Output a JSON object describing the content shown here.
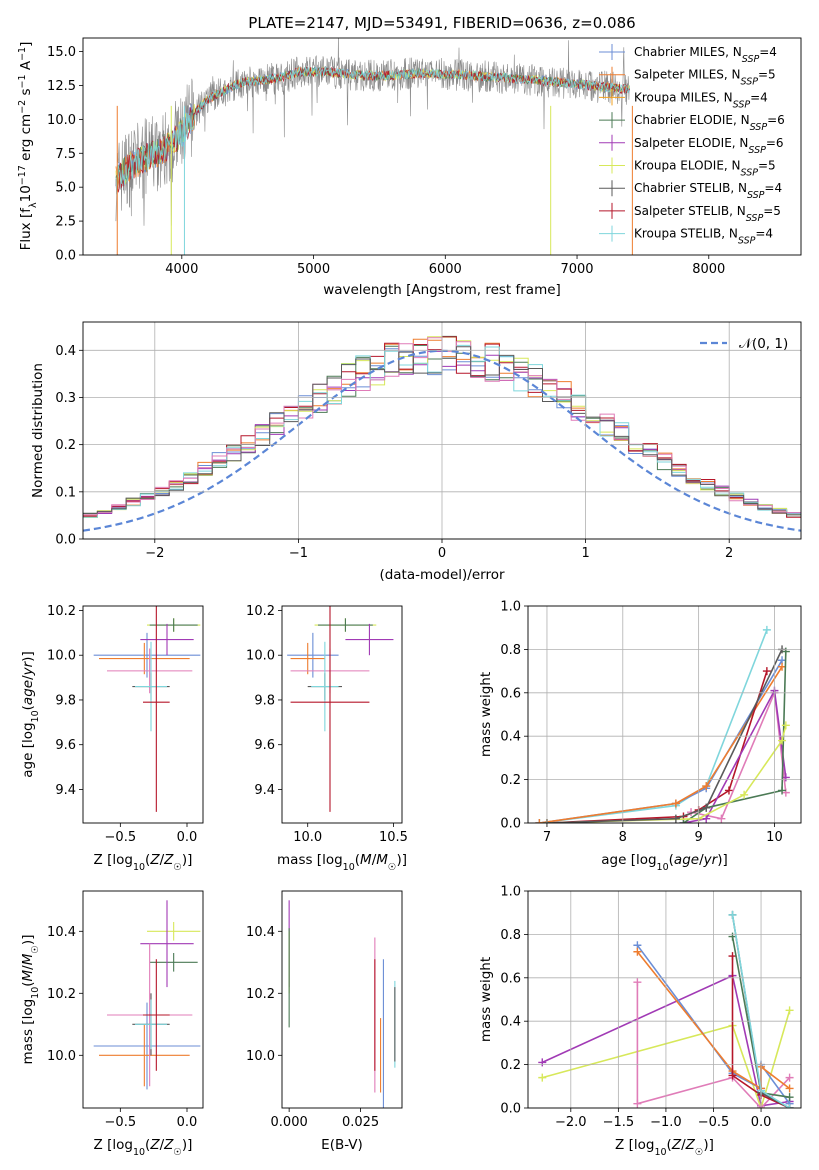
{
  "title": "PLATE=2147, MJD=53491, FIBERID=0636, z=0.086",
  "colors": {
    "chabrier_miles": "#6b8ed6",
    "salpeter_miles": "#ee7d2f",
    "kroupa_miles": "#f0a020",
    "chabrier_elodie": "#4b7a55",
    "salpeter_elodie": "#a13ab5",
    "kroupa_elodie": "#d7e85a",
    "chabrier_stelib": "#5a5a5a",
    "salpeter_stelib": "#b5162a",
    "kroupa_stelib": "#7fd6dc",
    "pink": "#e07cb8",
    "observed": "#8a8a8a",
    "normal": "#5b86d6"
  },
  "chart_data": [
    {
      "id": "spectrum",
      "type": "line",
      "title": "PLATE=2147, MJD=53491, FIBERID=0636, z=0.086",
      "xlabel": "wavelength [Angstrom, rest frame]",
      "ylabel": "Flux [f_λ10^-17 erg cm^-2 s^-1 A^-1]",
      "xlim": [
        3250,
        8700
      ],
      "ylim": [
        0,
        16
      ],
      "xticks": [
        "4000",
        "5000",
        "6000",
        "7000",
        "8000"
      ],
      "xtick_values": [
        4000,
        5000,
        6000,
        7000,
        8000
      ],
      "yticks": [
        "0.0",
        "2.5",
        "5.0",
        "7.5",
        "10.0",
        "12.5",
        "15.0"
      ],
      "ytick_values": [
        0,
        2.5,
        5,
        7.5,
        10,
        12.5,
        15
      ],
      "continuum": {
        "x": [
          3500,
          3600,
          3700,
          3800,
          3900,
          4000,
          4100,
          4200,
          4300,
          4400,
          4500,
          4700,
          4900,
          5100,
          5300,
          5500,
          5800,
          6100,
          6400,
          6700,
          7000,
          7200,
          7400
        ],
        "y": [
          5.5,
          6.5,
          7.0,
          7.5,
          8.0,
          9.0,
          10.5,
          11.5,
          12.0,
          12.5,
          12.8,
          13.0,
          13.5,
          13.5,
          13.3,
          13.2,
          13.4,
          13.3,
          13.1,
          12.9,
          12.6,
          12.4,
          12.2
        ]
      },
      "legend": [
        "Chabrier MILES, N_SSP=4",
        "Salpeter MILES, N_SSP=5",
        "Kroupa MILES, N_SSP=4",
        "Chabrier ELODIE, N_SSP=6",
        "Salpeter ELODIE, N_SSP=6",
        "Kroupa ELODIE, N_SSP=5",
        "Chabrier STELIB, N_SSP=4",
        "Salpeter STELIB, N_SSP=5",
        "Kroupa STELIB, N_SSP=4"
      ],
      "legend_placement": "upper right"
    },
    {
      "id": "residuals",
      "type": "histogram",
      "xlabel": "(data-model)/error",
      "ylabel": "Normed distribution",
      "xlim": [
        -2.5,
        2.5
      ],
      "ylim": [
        0,
        0.46
      ],
      "xticks": [
        "−2",
        "−1",
        "0",
        "1",
        "2"
      ],
      "xtick_values": [
        -2,
        -1,
        0,
        1,
        2
      ],
      "yticks": [
        "0.0",
        "0.1",
        "0.2",
        "0.3",
        "0.4"
      ],
      "ytick_values": [
        0,
        0.1,
        0.2,
        0.3,
        0.4
      ],
      "grid": true,
      "legend": [
        "𝒩(0, 1)"
      ],
      "legend_placement": "upper right"
    },
    {
      "id": "age_vs_Z",
      "type": "errorbar",
      "xlabel": "Z [log10(Z/Z☉)]",
      "ylabel": "age [log10(age/yr)]",
      "xlim": [
        -0.78,
        0.12
      ],
      "ylim": [
        9.25,
        10.22
      ],
      "xticks": [
        "−0.5",
        "0.0"
      ],
      "xtick_values": [
        -0.5,
        0.0
      ],
      "yticks": [
        "9.4",
        "9.6",
        "9.8",
        "10.0",
        "10.2"
      ],
      "ytick_values": [
        9.4,
        9.6,
        9.8,
        10.0,
        10.2
      ],
      "points": [
        {
          "c": "chabrier_miles",
          "x": -0.3,
          "y": 10.0,
          "xerr": 0.4,
          "yerr": 0.1
        },
        {
          "c": "salpeter_miles",
          "x": -0.32,
          "y": 9.985,
          "xerr": 0.34,
          "yerr": 0.07
        },
        {
          "c": "kroupa_elodie",
          "x": -0.1,
          "y": 10.135,
          "xerr": 0.2,
          "yerr": 0.03
        },
        {
          "c": "chabrier_elodie",
          "x": -0.1,
          "y": 10.135,
          "xerr": 0.18,
          "yerr": 0.03
        },
        {
          "c": "salpeter_elodie",
          "x": -0.15,
          "y": 10.07,
          "xerr": 0.2,
          "yerr": 0.07
        },
        {
          "c": "pink",
          "x": -0.28,
          "y": 9.93,
          "xerr": 0.32,
          "yerr": 0.1
        },
        {
          "c": "chabrier_stelib",
          "x": -0.27,
          "y": 9.86,
          "xerr": 0.14,
          "yerr": 0.06
        },
        {
          "c": "kroupa_stelib",
          "x": -0.27,
          "y": 9.86,
          "xerr": 0.12,
          "yerr": 0.2
        },
        {
          "c": "salpeter_stelib",
          "x": -0.23,
          "y": 9.79,
          "xerr": 0.1,
          "yerr": 0.49
        }
      ]
    },
    {
      "id": "age_vs_mass",
      "type": "errorbar",
      "xlabel": "mass [log10(M/M☉)]",
      "ylabel": "",
      "xlim": [
        9.85,
        10.55
      ],
      "ylim": [
        9.25,
        10.22
      ],
      "xticks": [
        "10.0",
        "10.5"
      ],
      "xtick_values": [
        10.0,
        10.5
      ],
      "yticks": [
        "9.4",
        "9.6",
        "9.8",
        "10.0",
        "10.2"
      ],
      "ytick_values": [
        9.4,
        9.6,
        9.8,
        10.0,
        10.2
      ],
      "points": [
        {
          "c": "chabrier_miles",
          "x": 10.03,
          "y": 10.0,
          "xerr": 0.15,
          "yerr": 0.1
        },
        {
          "c": "salpeter_miles",
          "x": 10.0,
          "y": 9.985,
          "xerr": 0.1,
          "yerr": 0.07
        },
        {
          "c": "kroupa_elodie",
          "x": 10.22,
          "y": 10.135,
          "xerr": 0.18,
          "yerr": 0.03
        },
        {
          "c": "chabrier_elodie",
          "x": 10.22,
          "y": 10.135,
          "xerr": 0.16,
          "yerr": 0.03
        },
        {
          "c": "salpeter_elodie",
          "x": 10.36,
          "y": 10.07,
          "xerr": 0.14,
          "yerr": 0.07
        },
        {
          "c": "pink",
          "x": 10.13,
          "y": 9.93,
          "xerr": 0.23,
          "yerr": 0.1
        },
        {
          "c": "chabrier_stelib",
          "x": 10.1,
          "y": 9.86,
          "xerr": 0.1,
          "yerr": 0.06
        },
        {
          "c": "kroupa_stelib",
          "x": 10.1,
          "y": 9.86,
          "xerr": 0.08,
          "yerr": 0.2
        },
        {
          "c": "salpeter_stelib",
          "x": 10.13,
          "y": 9.79,
          "xerr": 0.23,
          "yerr": 0.49
        }
      ]
    },
    {
      "id": "weight_vs_age",
      "type": "line",
      "xlabel": "age [log10(age/yr)]",
      "ylabel": "mass weight",
      "xlim": [
        6.75,
        10.35
      ],
      "ylim": [
        0,
        1
      ],
      "xticks": [
        "7",
        "8",
        "9",
        "10"
      ],
      "xtick_values": [
        7,
        8,
        9,
        10
      ],
      "yticks": [
        "0.0",
        "0.2",
        "0.4",
        "0.6",
        "0.8",
        "1.0"
      ],
      "ytick_values": [
        0,
        0.2,
        0.4,
        0.6,
        0.8,
        1.0
      ],
      "grid": true,
      "series": [
        {
          "c": "kroupa_stelib",
          "x": [
            6.9,
            8.7,
            9.1,
            9.9
          ],
          "y": [
            0.0,
            0.08,
            0.17,
            0.89
          ]
        },
        {
          "c": "chabrier_miles",
          "x": [
            6.9,
            8.7,
            9.1,
            10.1
          ],
          "y": [
            0.0,
            0.09,
            0.16,
            0.75
          ]
        },
        {
          "c": "salpeter_miles",
          "x": [
            6.9,
            8.7,
            9.1,
            10.1
          ],
          "y": [
            0.0,
            0.09,
            0.17,
            0.72
          ]
        },
        {
          "c": "salpeter_stelib",
          "x": [
            7.0,
            8.8,
            9.0,
            9.4,
            9.9
          ],
          "y": [
            0.0,
            0.03,
            0.06,
            0.15,
            0.7
          ]
        },
        {
          "c": "pink",
          "x": [
            8.9,
            9.3,
            10.0,
            10.15
          ],
          "y": [
            0.05,
            0.02,
            0.6,
            0.14
          ]
        },
        {
          "c": "salpeter_elodie",
          "x": [
            8.8,
            9.1,
            10.0,
            10.15
          ],
          "y": [
            0.0,
            0.02,
            0.61,
            0.21
          ]
        },
        {
          "c": "chabrier_elodie",
          "x": [
            8.8,
            9.1,
            10.1,
            10.15
          ],
          "y": [
            0.0,
            0.07,
            0.15,
            0.79
          ]
        },
        {
          "c": "kroupa_elodie",
          "x": [
            7.0,
            9.0,
            9.6,
            10.1,
            10.15
          ],
          "y": [
            0.0,
            0.02,
            0.13,
            0.38,
            0.45
          ]
        },
        {
          "c": "chabrier_stelib",
          "x": [
            7.0,
            8.7,
            9.1,
            10.1
          ],
          "y": [
            0.0,
            0.02,
            0.07,
            0.8
          ]
        }
      ]
    },
    {
      "id": "mass_vs_Z",
      "type": "errorbar",
      "xlabel": "Z [log10(Z/Z☉)]",
      "ylabel": "mass [log10(M/M☉)]",
      "xlim": [
        -0.78,
        0.12
      ],
      "ylim": [
        9.83,
        10.53
      ],
      "xticks": [
        "−0.5",
        "0.0"
      ],
      "xtick_values": [
        -0.5,
        0.0
      ],
      "yticks": [
        "10.0",
        "10.2",
        "10.4"
      ],
      "ytick_values": [
        10.0,
        10.2,
        10.4
      ],
      "points": [
        {
          "c": "chabrier_miles",
          "x": -0.3,
          "y": 10.03,
          "xerr": 0.4,
          "yerr": 0.14
        },
        {
          "c": "salpeter_miles",
          "x": -0.32,
          "y": 10.0,
          "xerr": 0.34,
          "yerr": 0.1
        },
        {
          "c": "kroupa_elodie",
          "x": -0.1,
          "y": 10.4,
          "xerr": 0.2,
          "yerr": 0.03
        },
        {
          "c": "chabrier_elodie",
          "x": -0.1,
          "y": 10.3,
          "xerr": 0.18,
          "yerr": 0.03
        },
        {
          "c": "salpeter_elodie",
          "x": -0.15,
          "y": 10.36,
          "xerr": 0.2,
          "yerr": 0.14
        },
        {
          "c": "pink",
          "x": -0.28,
          "y": 10.13,
          "xerr": 0.32,
          "yerr": 0.23
        },
        {
          "c": "chabrier_stelib",
          "x": -0.27,
          "y": 10.1,
          "xerr": 0.14,
          "yerr": 0.1
        },
        {
          "c": "kroupa_stelib",
          "x": -0.27,
          "y": 10.1,
          "xerr": 0.12,
          "yerr": 0.08
        },
        {
          "c": "salpeter_stelib",
          "x": -0.23,
          "y": 10.13,
          "xerr": 0.1,
          "yerr": 0.18
        }
      ]
    },
    {
      "id": "mass_vs_ebv",
      "type": "errorbar",
      "xlabel": "E(B-V)",
      "ylabel": "",
      "xlim": [
        -0.0025,
        0.0395
      ],
      "ylim": [
        9.83,
        10.53
      ],
      "xticks": [
        "0.000",
        "0.025"
      ],
      "xtick_values": [
        0.0,
        0.025
      ],
      "yticks": [
        "10.0",
        "10.2",
        "10.4"
      ],
      "ytick_values": [
        10.0,
        10.2,
        10.4
      ],
      "points": [
        {
          "c": "salpeter_elodie",
          "x": 0.0,
          "y": 10.36,
          "xerr": 0.0,
          "yerr": 0.14
        },
        {
          "c": "kroupa_elodie",
          "x": 0.0,
          "y": 10.3,
          "xerr": 0.0,
          "yerr": 0.1
        },
        {
          "c": "chabrier_elodie",
          "x": 0.0,
          "y": 10.25,
          "xerr": 0.0,
          "yerr": 0.16
        },
        {
          "c": "pink",
          "x": 0.03,
          "y": 10.13,
          "xerr": 0.0,
          "yerr": 0.25
        },
        {
          "c": "salpeter_stelib",
          "x": 0.03,
          "y": 10.13,
          "xerr": 0.0,
          "yerr": 0.18
        },
        {
          "c": "salpeter_miles",
          "x": 0.032,
          "y": 10.0,
          "xerr": 0.0,
          "yerr": 0.12
        },
        {
          "c": "chabrier_miles",
          "x": 0.033,
          "y": 10.03,
          "xerr": 0.0,
          "yerr": 0.28
        },
        {
          "c": "kroupa_stelib",
          "x": 0.037,
          "y": 10.1,
          "xerr": 0.0,
          "yerr": 0.14
        },
        {
          "c": "chabrier_stelib",
          "x": 0.037,
          "y": 10.1,
          "xerr": 0.0,
          "yerr": 0.12
        }
      ]
    },
    {
      "id": "weight_vs_Z",
      "type": "line",
      "xlabel": "Z [log10(Z/Z☉)]",
      "ylabel": "mass weight",
      "xlim": [
        -2.45,
        0.42
      ],
      "ylim": [
        0,
        1
      ],
      "xticks": [
        "−2.0",
        "−1.5",
        "−1.0",
        "−0.5",
        "0.0"
      ],
      "xtick_values": [
        -2.0,
        -1.5,
        -1.0,
        -0.5,
        0.0
      ],
      "yticks": [
        "0.0",
        "0.2",
        "0.4",
        "0.6",
        "0.8",
        "1.0"
      ],
      "ytick_values": [
        0,
        0.2,
        0.4,
        0.6,
        0.8,
        1.0
      ],
      "grid": true,
      "series": [
        {
          "c": "salpeter_elodie",
          "x": [
            -2.3,
            -0.3,
            0.0,
            0.3
          ],
          "y": [
            0.21,
            0.61,
            0.01,
            0.03
          ]
        },
        {
          "c": "kroupa_elodie",
          "x": [
            -2.3,
            -0.3,
            0.0,
            0.3
          ],
          "y": [
            0.14,
            0.38,
            0.0,
            0.45
          ]
        },
        {
          "c": "pink",
          "x": [
            -1.3,
            -1.3,
            -0.3,
            0.0,
            0.3
          ],
          "y": [
            0.58,
            0.02,
            0.14,
            0.0,
            0.14
          ]
        },
        {
          "c": "chabrier_miles",
          "x": [
            -1.3,
            -0.3,
            0.0,
            0.0,
            0.3
          ],
          "y": [
            0.75,
            0.16,
            0.09,
            0.2,
            0.02
          ]
        },
        {
          "c": "salpeter_miles",
          "x": [
            -1.3,
            -0.3,
            0.0,
            0.0,
            0.3
          ],
          "y": [
            0.72,
            0.17,
            0.09,
            0.19,
            0.09
          ]
        },
        {
          "c": "salpeter_stelib",
          "x": [
            -0.3,
            -0.3,
            0.0,
            0.3
          ],
          "y": [
            0.7,
            0.15,
            0.06,
            0.0
          ]
        },
        {
          "c": "chabrier_elodie",
          "x": [
            -0.3,
            0.0,
            0.3
          ],
          "y": [
            0.79,
            0.07,
            0.05
          ]
        },
        {
          "c": "chabrier_stelib",
          "x": [
            -0.3,
            0.0,
            0.3
          ],
          "y": [
            0.89,
            0.07,
            0.0
          ]
        },
        {
          "c": "kroupa_stelib",
          "x": [
            -0.3,
            0.0,
            0.3
          ],
          "y": [
            0.89,
            0.08,
            0.0
          ]
        }
      ]
    }
  ]
}
